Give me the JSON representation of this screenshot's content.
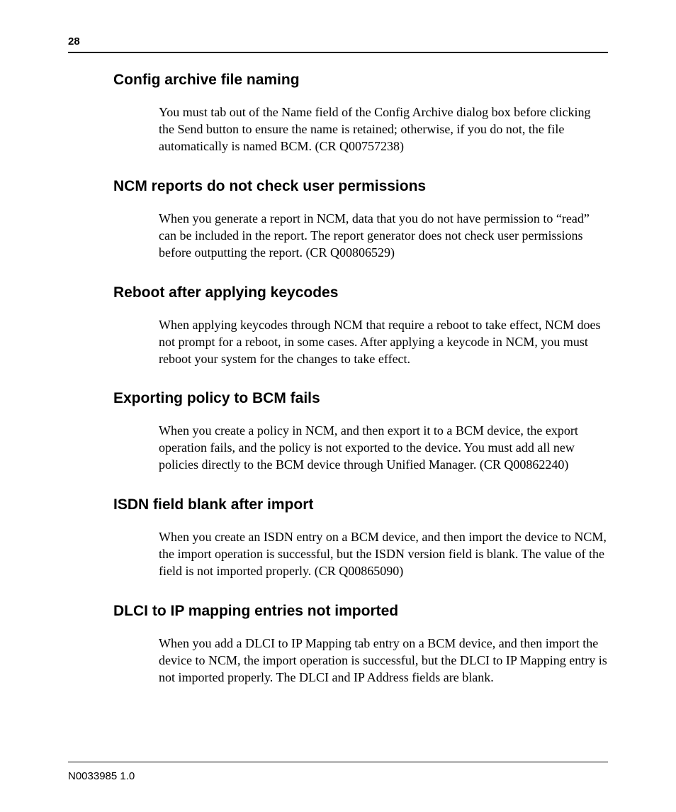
{
  "page_number": "28",
  "doc_id": "N0033985 1.0",
  "sections": [
    {
      "heading": "Config archive file naming",
      "body": "You must tab out of the Name field of the Config Archive dialog box before clicking the Send button to ensure the name is retained; otherwise, if you do not, the file automatically is named BCM. (CR Q00757238)"
    },
    {
      "heading": "NCM reports do not check user permissions",
      "body": "When you generate a report in NCM, data that you do not have permission to “read” can be included in the report. The report generator does not check user permissions before outputting the report. (CR Q00806529)"
    },
    {
      "heading": "Reboot after applying keycodes",
      "body": "When applying keycodes through NCM that require a reboot to take effect, NCM does not prompt for a reboot, in some cases. After applying a keycode in NCM, you must reboot your system for the changes to take effect."
    },
    {
      "heading": "Exporting policy to BCM fails",
      "body": "When you create a policy in NCM, and then export it to a BCM device, the export operation fails, and the policy is not exported to the device. You must add all new policies directly to the BCM device through Unified Manager. (CR Q00862240)"
    },
    {
      "heading": "ISDN field blank after import",
      "body": "When you create an ISDN entry on a BCM device, and then import the device to NCM, the import operation is successful, but the ISDN version field is blank. The value of the field is not imported properly. (CR Q00865090)"
    },
    {
      "heading": "DLCI to IP mapping entries not imported",
      "body": "When you add a DLCI to IP Mapping tab entry on a BCM device, and then import the device to NCM, the import operation is successful, but the DLCI to IP Mapping entry is not imported properly. The DLCI and IP Address fields are blank."
    }
  ]
}
